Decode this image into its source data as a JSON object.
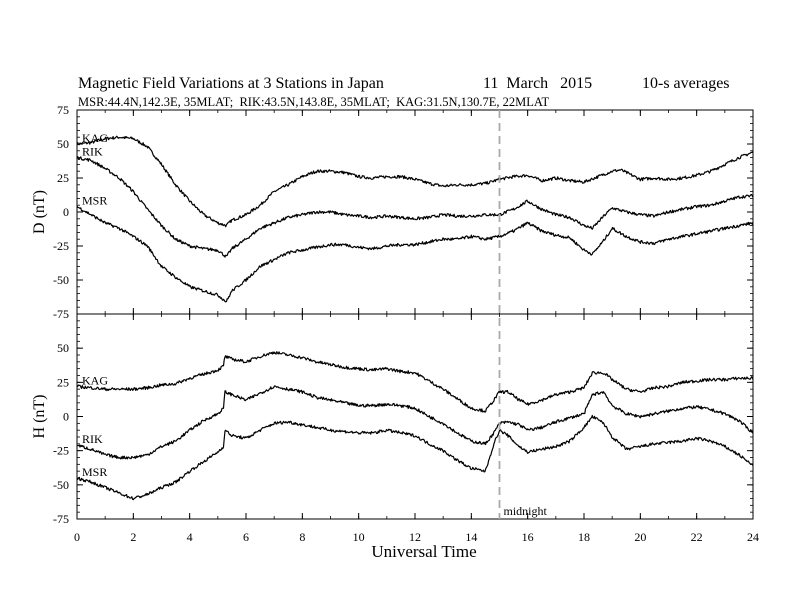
{
  "chart_data": {
    "type": "line",
    "title": "Magnetic Field Variations at 3 Stations in Japan",
    "date": "11  March   2015",
    "averaging": "10-s averages",
    "subtitle": "MSR:44.4N,142.3E, 35MLAT;  RIK:43.5N,143.8E, 35MLAT;  KAG:31.5N,130.7E, 22MLAT",
    "xlabel": "Universal Time",
    "xlim": [
      0,
      24
    ],
    "xticks": [
      "0",
      "2",
      "4",
      "6",
      "8",
      "10",
      "12",
      "14",
      "16",
      "18",
      "20",
      "22",
      "24"
    ],
    "marker": {
      "x": 15,
      "label": "midnight",
      "style": "dashed",
      "color": "#aaaaaa"
    },
    "panels": [
      {
        "ylabel": "D (nT)",
        "ylim": [
          -75,
          75
        ],
        "yticks": [
          "75",
          "50",
          "25",
          "0",
          "-25",
          "-50",
          "-75"
        ],
        "series": [
          {
            "name": "KAG",
            "x": [
              0,
              0.5,
              1,
              1.5,
              2,
              2.5,
              3,
              3.5,
              4,
              4.5,
              5,
              5.3,
              5.5,
              6,
              6.5,
              7,
              7.5,
              8,
              8.5,
              9,
              9.5,
              10,
              10.5,
              11,
              11.5,
              12,
              12.5,
              13,
              13.5,
              14,
              14.5,
              15,
              15.5,
              16,
              16.5,
              17,
              17.5,
              18,
              18.5,
              19,
              19.3,
              19.7,
              20,
              20.5,
              21,
              21.5,
              22,
              22.5,
              23,
              23.5,
              24
            ],
            "y": [
              50,
              51,
              54,
              55,
              54,
              48,
              35,
              20,
              8,
              -2,
              -8,
              -10,
              -6,
              -2,
              5,
              15,
              20,
              26,
              30,
              30,
              29,
              26,
              25,
              26,
              26,
              24,
              21,
              19,
              20,
              20,
              21,
              24,
              26,
              27,
              23,
              25,
              23,
              22,
              26,
              30,
              31,
              27,
              24,
              25,
              24,
              25,
              27,
              30,
              35,
              40,
              44
            ]
          },
          {
            "name": "RIK",
            "x": [
              0,
              0.5,
              1,
              1.5,
              2,
              2.5,
              3,
              3.5,
              4,
              4.5,
              5,
              5.3,
              5.5,
              6,
              6.5,
              7,
              7.5,
              8,
              8.5,
              9,
              9.5,
              10,
              10.5,
              11,
              11.5,
              12,
              12.5,
              13,
              13.5,
              14,
              14.5,
              15,
              15.5,
              16,
              16.5,
              17,
              17.5,
              18,
              18.3,
              18.7,
              19,
              19.5,
              20,
              20.5,
              21,
              21.5,
              22,
              22.5,
              23,
              23.5,
              24
            ],
            "y": [
              40,
              38,
              32,
              25,
              15,
              2,
              -10,
              -20,
              -25,
              -27,
              -28,
              -33,
              -27,
              -20,
              -12,
              -8,
              -4,
              -2,
              0,
              0,
              -2,
              -3,
              -4,
              -3,
              -4,
              -5,
              -4,
              -2,
              -3,
              -3,
              -2,
              -2,
              2,
              8,
              2,
              -2,
              -4,
              -10,
              -12,
              -3,
              3,
              0,
              -2,
              -3,
              0,
              2,
              4,
              5,
              8,
              11,
              12
            ]
          },
          {
            "name": "MSR",
            "x": [
              0,
              0.5,
              1,
              1.5,
              2,
              2.5,
              3,
              3.5,
              4,
              4.5,
              5,
              5.3,
              5.5,
              6,
              6.5,
              7,
              7.5,
              8,
              8.5,
              9,
              9.5,
              10,
              10.5,
              11,
              11.5,
              12,
              12.5,
              13,
              13.5,
              14,
              14.5,
              15,
              15.5,
              16,
              16.5,
              17,
              17.5,
              18,
              18.3,
              18.7,
              19,
              19.5,
              20,
              20.5,
              21,
              21.5,
              22,
              22.5,
              23,
              23.5,
              24
            ],
            "y": [
              4,
              -2,
              -8,
              -12,
              -18,
              -25,
              -40,
              -48,
              -55,
              -58,
              -61,
              -66,
              -58,
              -50,
              -40,
              -35,
              -30,
              -28,
              -26,
              -24,
              -24,
              -26,
              -27,
              -25,
              -24,
              -24,
              -22,
              -20,
              -20,
              -18,
              -20,
              -18,
              -14,
              -8,
              -14,
              -17,
              -19,
              -28,
              -31,
              -21,
              -12,
              -18,
              -22,
              -23,
              -20,
              -18,
              -16,
              -14,
              -12,
              -10,
              -8
            ]
          }
        ]
      },
      {
        "ylabel": "H (nT)",
        "ylim": [
          -75,
          75
        ],
        "yticks": [
          "50",
          "25",
          "0",
          "-25",
          "-50",
          "-75"
        ],
        "series": [
          {
            "name": "KAG",
            "x": [
              0,
              0.5,
              1,
              1.5,
              2,
              2.5,
              3,
              3.5,
              4,
              4.5,
              5,
              5.2,
              5.25,
              5.5,
              6,
              6.5,
              7,
              7.5,
              8,
              8.5,
              9,
              9.5,
              10,
              10.5,
              11,
              11.5,
              12,
              12.5,
              13,
              13.5,
              14,
              14.5,
              14.8,
              15,
              15.3,
              15.7,
              16,
              16.5,
              17,
              17.5,
              18,
              18.3,
              18.7,
              19,
              19.5,
              20,
              20.5,
              21,
              21.5,
              22,
              22.5,
              23,
              23.5,
              24
            ],
            "y": [
              22,
              21,
              20,
              20,
              20,
              21,
              23,
              24,
              28,
              31,
              34,
              37,
              44,
              42,
              40,
              44,
              47,
              45,
              43,
              40,
              38,
              36,
              35,
              34,
              35,
              33,
              32,
              26,
              20,
              13,
              6,
              4,
              12,
              18,
              18,
              12,
              9,
              12,
              16,
              18,
              21,
              32,
              32,
              27,
              20,
              18,
              21,
              22,
              25,
              26,
              27,
              27,
              28,
              28
            ]
          },
          {
            "name": "RIK",
            "x": [
              0,
              0.5,
              1,
              1.5,
              2,
              2.5,
              3,
              3.5,
              4,
              4.5,
              5,
              5.2,
              5.25,
              5.5,
              6,
              6.5,
              7,
              7.5,
              8,
              8.5,
              9,
              9.5,
              10,
              10.5,
              11,
              11.5,
              12,
              12.5,
              13,
              13.5,
              14,
              14.5,
              14.8,
              15,
              15.3,
              15.7,
              16,
              16.5,
              17,
              17.5,
              18,
              18.3,
              18.7,
              19,
              19.5,
              20,
              20.5,
              21,
              21.5,
              22,
              22.5,
              23,
              23.5,
              24
            ],
            "y": [
              -21,
              -24,
              -28,
              -30,
              -30,
              -28,
              -22,
              -18,
              -10,
              -3,
              2,
              6,
              18,
              16,
              12,
              17,
              22,
              20,
              18,
              14,
              12,
              10,
              8,
              8,
              9,
              8,
              6,
              0,
              -5,
              -12,
              -18,
              -20,
              -12,
              -5,
              -4,
              -6,
              -10,
              -8,
              -4,
              -1,
              2,
              16,
              18,
              8,
              2,
              0,
              2,
              4,
              6,
              7,
              5,
              2,
              -3,
              -12
            ]
          },
          {
            "name": "MSR",
            "x": [
              0,
              0.5,
              1,
              1.5,
              2,
              2.5,
              3,
              3.5,
              4,
              4.5,
              5,
              5.2,
              5.25,
              5.5,
              6,
              6.5,
              7,
              7.5,
              8,
              8.5,
              9,
              9.5,
              10,
              10.5,
              11,
              11.5,
              12,
              12.5,
              13,
              13.5,
              14,
              14.5,
              14.8,
              15,
              15.3,
              15.7,
              16,
              16.5,
              17,
              17.5,
              18,
              18.3,
              18.7,
              19,
              19.5,
              20,
              20.5,
              21,
              21.5,
              22,
              22.5,
              23,
              23.5,
              24
            ],
            "y": [
              -45,
              -48,
              -52,
              -56,
              -60,
              -57,
              -52,
              -48,
              -40,
              -33,
              -26,
              -22,
              -10,
              -14,
              -16,
              -10,
              -5,
              -4,
              -6,
              -8,
              -10,
              -11,
              -12,
              -12,
              -10,
              -12,
              -14,
              -20,
              -25,
              -32,
              -38,
              -40,
              -20,
              -10,
              -14,
              -22,
              -26,
              -24,
              -22,
              -18,
              -8,
              0,
              -5,
              -15,
              -24,
              -22,
              -20,
              -19,
              -18,
              -16,
              -18,
              -22,
              -28,
              -36
            ]
          }
        ]
      }
    ]
  }
}
